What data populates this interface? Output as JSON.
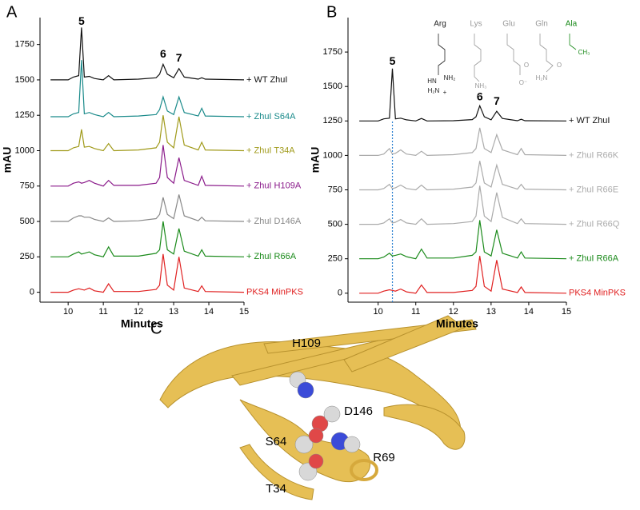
{
  "chart_data": [
    {
      "type": "line",
      "panel": "A",
      "xlabel": "Minutes",
      "ylabel": "mAU",
      "xlim": [
        9.2,
        15
      ],
      "ylim": [
        -70,
        1940
      ],
      "xticks": [
        10,
        11,
        12,
        13,
        14,
        15
      ],
      "yticks": [
        0,
        250,
        500,
        750,
        1000,
        1250,
        1500,
        1750
      ],
      "x": [
        9.5,
        10.0,
        10.15,
        10.3,
        10.38,
        10.46,
        10.6,
        10.75,
        11.0,
        11.15,
        11.3,
        12.0,
        12.5,
        12.6,
        12.7,
        12.82,
        13.0,
        13.15,
        13.3,
        13.7,
        13.8,
        13.9,
        15.0
      ],
      "series": [
        {
          "name": "+ WT ZhuI",
          "color": "#111111",
          "values": [
            1500,
            1500,
            1520,
            1530,
            1870,
            1520,
            1525,
            1510,
            1500,
            1530,
            1500,
            1505,
            1515,
            1540,
            1610,
            1540,
            1515,
            1580,
            1520,
            1505,
            1515,
            1505,
            1500
          ]
        },
        {
          "name": "+ ZhuI S64A",
          "color": "#1a8a8a",
          "values": [
            1240,
            1240,
            1260,
            1270,
            1640,
            1260,
            1270,
            1255,
            1240,
            1270,
            1240,
            1245,
            1255,
            1290,
            1380,
            1280,
            1255,
            1380,
            1270,
            1245,
            1300,
            1245,
            1240
          ]
        },
        {
          "name": "+ ZhuI T34A",
          "color": "#a09a1a",
          "values": [
            1000,
            1000,
            1020,
            1030,
            1150,
            1025,
            1030,
            1015,
            1000,
            1050,
            1000,
            1005,
            1020,
            1060,
            1250,
            1060,
            1020,
            1240,
            1040,
            1005,
            1060,
            1005,
            1000
          ]
        },
        {
          "name": "+ ZhuI H109A",
          "color": "#8a1a8a",
          "values": [
            750,
            750,
            770,
            780,
            770,
            775,
            790,
            770,
            750,
            790,
            755,
            755,
            770,
            810,
            1040,
            810,
            770,
            950,
            790,
            755,
            820,
            755,
            750
          ]
        },
        {
          "name": "+ ZhuI D146A",
          "color": "#888888",
          "values": [
            500,
            500,
            525,
            540,
            540,
            530,
            530,
            515,
            500,
            525,
            500,
            505,
            520,
            550,
            670,
            550,
            520,
            690,
            540,
            505,
            530,
            505,
            500
          ]
        },
        {
          "name": "+ ZhuI R66A",
          "color": "#1a8a1a",
          "values": [
            250,
            250,
            270,
            285,
            270,
            275,
            285,
            265,
            250,
            320,
            255,
            255,
            275,
            300,
            500,
            300,
            270,
            450,
            290,
            255,
            300,
            255,
            250
          ]
        },
        {
          "name": "PKS4 MinPKS",
          "color": "#e02020",
          "values": [
            0,
            0,
            15,
            25,
            20,
            15,
            30,
            10,
            0,
            60,
            5,
            5,
            20,
            50,
            270,
            50,
            15,
            250,
            30,
            5,
            45,
            5,
            0
          ]
        }
      ],
      "annotations": [
        {
          "text": "5",
          "x": 10.38,
          "y": 1910
        },
        {
          "text": "6",
          "x": 12.7,
          "y": 1680
        },
        {
          "text": "7",
          "x": 13.15,
          "y": 1650
        }
      ]
    },
    {
      "type": "line",
      "panel": "B",
      "xlabel": "Minutes",
      "ylabel": "mAU",
      "xlim": [
        9.2,
        15
      ],
      "ylim": [
        -65,
        2000
      ],
      "xticks": [
        10,
        11,
        12,
        13,
        14,
        15
      ],
      "yticks": [
        0,
        250,
        500,
        750,
        1000,
        1250,
        1500,
        1750
      ],
      "x": [
        9.5,
        10.0,
        10.15,
        10.3,
        10.38,
        10.46,
        10.6,
        10.75,
        11.0,
        11.15,
        11.3,
        12.0,
        12.5,
        12.6,
        12.7,
        12.82,
        13.0,
        13.15,
        13.3,
        13.7,
        13.8,
        13.9,
        15.0
      ],
      "series": [
        {
          "name": "+ WT ZhuI",
          "color": "#111111",
          "values": [
            1250,
            1250,
            1265,
            1270,
            1630,
            1265,
            1270,
            1258,
            1250,
            1268,
            1250,
            1252,
            1260,
            1280,
            1360,
            1280,
            1258,
            1320,
            1268,
            1252,
            1262,
            1252,
            1250
          ]
        },
        {
          "name": "+ ZhuI R66K",
          "color": "#aaaaaa",
          "values": [
            1000,
            1000,
            1010,
            1050,
            1010,
            1015,
            1040,
            1010,
            1000,
            1030,
            1000,
            1005,
            1020,
            1050,
            1200,
            1050,
            1020,
            1150,
            1040,
            1005,
            1050,
            1005,
            1000
          ]
        },
        {
          "name": "+ ZhuI R66E",
          "color": "#aaaaaa",
          "values": [
            750,
            750,
            760,
            790,
            760,
            765,
            785,
            760,
            750,
            785,
            750,
            755,
            770,
            800,
            960,
            800,
            770,
            930,
            790,
            755,
            790,
            755,
            750
          ]
        },
        {
          "name": "+ ZhuI R66Q",
          "color": "#aaaaaa",
          "values": [
            500,
            500,
            510,
            540,
            510,
            515,
            535,
            510,
            500,
            540,
            500,
            505,
            520,
            560,
            780,
            560,
            520,
            730,
            550,
            505,
            540,
            505,
            500
          ]
        },
        {
          "name": "+ ZhuI R66A",
          "color": "#1a8a1a",
          "values": [
            250,
            250,
            262,
            290,
            270,
            275,
            285,
            265,
            250,
            320,
            255,
            255,
            275,
            300,
            530,
            300,
            270,
            460,
            290,
            255,
            300,
            255,
            250
          ]
        },
        {
          "name": "PKS4 MinPKS",
          "color": "#e02020",
          "values": [
            0,
            0,
            15,
            25,
            20,
            15,
            30,
            10,
            0,
            60,
            5,
            5,
            20,
            50,
            270,
            50,
            15,
            240,
            30,
            5,
            45,
            5,
            0
          ]
        }
      ],
      "annotations": [
        {
          "text": "5",
          "x": 10.38,
          "y": 1680
        },
        {
          "text": "6",
          "x": 12.7,
          "y": 1420
        },
        {
          "text": "7",
          "x": 13.15,
          "y": 1390
        }
      ],
      "vline": {
        "x": 10.38,
        "color": "#2a7fd0"
      },
      "side_chains": [
        {
          "name": "Arg",
          "color": "#222222",
          "groups": [
            "HN",
            "NH₂",
            "H₂N",
            "+"
          ]
        },
        {
          "name": "Lys",
          "color": "#999999",
          "groups": [
            "NH₃",
            "+"
          ]
        },
        {
          "name": "Glu",
          "color": "#999999",
          "groups": [
            "O",
            "O⁻"
          ]
        },
        {
          "name": "Gln",
          "color": "#999999",
          "groups": [
            "O",
            "H₂N"
          ]
        },
        {
          "name": "Ala",
          "color": "#1a8a1a",
          "groups": [
            "CH₃"
          ]
        }
      ]
    }
  ],
  "figure_c": {
    "panel": "C",
    "residues": [
      "H109",
      "D146",
      "S64",
      "R69",
      "T34"
    ]
  }
}
